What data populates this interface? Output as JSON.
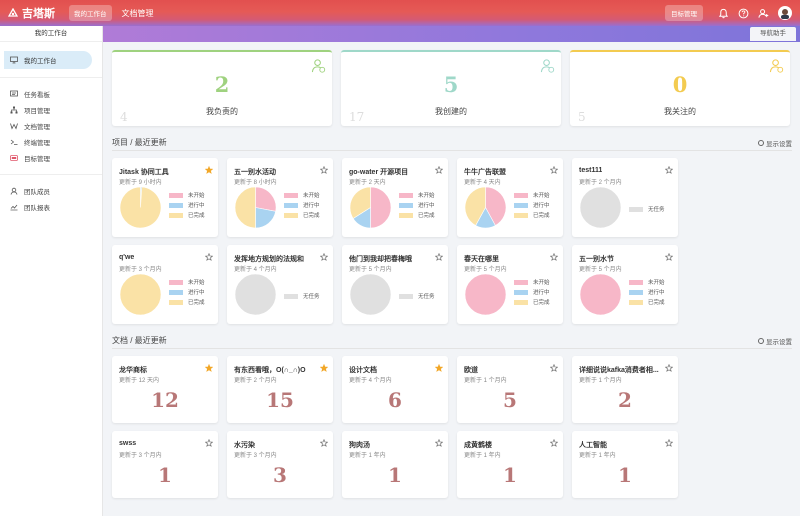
{
  "header": {
    "brand": "吉塔斯",
    "tab_active": "我的工作台",
    "tab_docs": "文档管理",
    "goal_button": "目标管理",
    "icons": [
      "bell-icon",
      "help-icon",
      "add-user-icon",
      "avatar"
    ]
  },
  "subbar": {
    "nav_helper": "导航助手"
  },
  "sidebar": {
    "title": "我的工作台",
    "items": [
      {
        "label": "我的工作台",
        "icon": "monitor-icon"
      },
      {
        "label": "任务看板",
        "icon": "board-icon"
      },
      {
        "label": "项目管理",
        "icon": "tree-icon"
      },
      {
        "label": "文档管理",
        "icon": "doc-w-icon"
      },
      {
        "label": "终端管理",
        "icon": "terminal-icon"
      },
      {
        "label": "目标管理",
        "icon": "target-icon"
      },
      {
        "label": "团队成员",
        "icon": "team-icon"
      },
      {
        "label": "团队报表",
        "icon": "report-icon"
      }
    ]
  },
  "stats": [
    {
      "value": "2",
      "label": "我负责的",
      "ghost": "4",
      "color": "#9fd27f"
    },
    {
      "value": "5",
      "label": "我创建的",
      "ghost": "17",
      "color": "#9fd8c9"
    },
    {
      "value": "0",
      "label": "我关注的",
      "ghost": "5",
      "color": "#f3cb50"
    }
  ],
  "projects_section": {
    "title": "项目 / 最近更新",
    "settings": "显示设置"
  },
  "docs_section": {
    "title": "文档 / 最近更新",
    "settings": "显示设置"
  },
  "legend": {
    "todo": "未开始",
    "doing": "进行中",
    "done": "已完成",
    "none": "无任务"
  },
  "colors": {
    "todo": "#f7b7c8",
    "doing": "#a9d3f1",
    "done": "#fae2a6",
    "none": "#e0e0e0",
    "star": "#f2a728"
  },
  "projects": [
    {
      "name": "Jitask 协同工具",
      "updated": "更新于 9 小时内",
      "starred": true,
      "empty": false,
      "todo": 0,
      "doing": 0.01,
      "done": 0.99
    },
    {
      "name": "五一别水活动",
      "updated": "更新于 8 小时内",
      "starred": false,
      "empty": false,
      "todo": 0.28,
      "doing": 0.22,
      "done": 0.5
    },
    {
      "name": "go-water 开源项目",
      "updated": "更新于 2 天内",
      "starred": false,
      "empty": false,
      "todo": 0.5,
      "doing": 0.16,
      "done": 0.34
    },
    {
      "name": "牛牛广告联盟",
      "updated": "更新于 4 天内",
      "starred": false,
      "empty": false,
      "todo": 0.42,
      "doing": 0.16,
      "done": 0.42
    },
    {
      "name": "test111",
      "updated": "更新于 2 个月内",
      "starred": false,
      "empty": true
    },
    {
      "name": "q'we",
      "updated": "更新于 3 个月内",
      "starred": false,
      "empty": false,
      "todo": 0,
      "doing": 0,
      "done": 1
    },
    {
      "name": "发挥地方规划的法规和",
      "updated": "更新于 4 个月内",
      "starred": false,
      "empty": true
    },
    {
      "name": "他门到我却把春梅哦",
      "updated": "更新于 5 个月内",
      "starred": false,
      "empty": true
    },
    {
      "name": "春天在哪里",
      "updated": "更新于 5 个月内",
      "starred": false,
      "empty": false,
      "todo": 1,
      "doing": 0,
      "done": 0
    },
    {
      "name": "五一别水节",
      "updated": "更新于 5 个月内",
      "starred": false,
      "empty": false,
      "todo": 1,
      "doing": 0,
      "done": 0
    }
  ],
  "docs": [
    {
      "name": "龙华商标",
      "updated": "更新于 12 天内",
      "count": "12",
      "starred": true
    },
    {
      "name": "有东西看哦，O(∩_∩)O",
      "updated": "更新于 2 个月内",
      "count": "15",
      "starred": true
    },
    {
      "name": "设计文档",
      "updated": "更新于 4 个月内",
      "count": "6",
      "starred": true
    },
    {
      "name": "欧道",
      "updated": "更新于 1 个月内",
      "count": "5",
      "starred": false
    },
    {
      "name": "详细说说kafka消费者相...",
      "updated": "更新于 1 个月内",
      "count": "2",
      "starred": false
    },
    {
      "name": "swss",
      "updated": "更新于 3 个月内",
      "count": "1",
      "starred": false
    },
    {
      "name": "水污染",
      "updated": "更新于 3 个月内",
      "count": "3",
      "starred": false
    },
    {
      "name": "狗肉汤",
      "updated": "更新于 1 年内",
      "count": "1",
      "starred": false
    },
    {
      "name": "成黄鹤楼",
      "updated": "更新于 1 年内",
      "count": "1",
      "starred": false
    },
    {
      "name": "人工智能",
      "updated": "更新于 1 年内",
      "count": "1",
      "starred": false
    }
  ]
}
